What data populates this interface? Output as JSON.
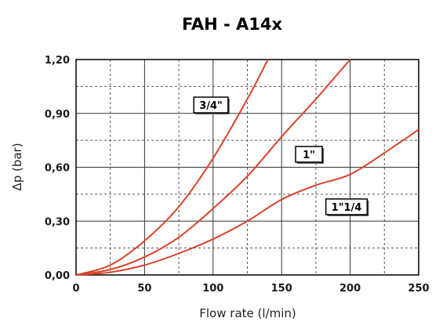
{
  "chart_data": {
    "type": "line",
    "title": "FAH - A14x",
    "xlabel": "Flow rate (l/min)",
    "ylabel": "Δp (bar)",
    "xlim": [
      0,
      250
    ],
    "ylim": [
      0,
      1.2
    ],
    "x_ticks": [
      0,
      50,
      100,
      150,
      200,
      250
    ],
    "x_tick_labels": [
      "0",
      "50",
      "100",
      "150",
      "200",
      "250"
    ],
    "y_ticks": [
      0,
      0.3,
      0.6,
      0.9,
      1.2
    ],
    "y_tick_labels": [
      "0,00",
      "0,30",
      "0,60",
      "0,90",
      "1,20"
    ],
    "grid": true,
    "line_color": "#d9432a",
    "series": [
      {
        "name": "3/4\"",
        "points": [
          [
            0,
            0
          ],
          [
            25,
            0.055
          ],
          [
            50,
            0.19
          ],
          [
            75,
            0.38
          ],
          [
            100,
            0.65
          ],
          [
            125,
            0.98
          ],
          [
            140,
            1.2
          ]
        ]
      },
      {
        "name": "1\"",
        "points": [
          [
            0,
            0
          ],
          [
            25,
            0.03
          ],
          [
            50,
            0.1
          ],
          [
            75,
            0.21
          ],
          [
            100,
            0.37
          ],
          [
            125,
            0.55
          ],
          [
            150,
            0.77
          ],
          [
            175,
            0.98
          ],
          [
            200,
            1.2
          ]
        ]
      },
      {
        "name": "1\"1/4",
        "points": [
          [
            0,
            0
          ],
          [
            25,
            0.015
          ],
          [
            50,
            0.055
          ],
          [
            75,
            0.12
          ],
          [
            100,
            0.2
          ],
          [
            125,
            0.3
          ],
          [
            150,
            0.42
          ],
          [
            175,
            0.5
          ],
          [
            200,
            0.56
          ],
          [
            225,
            0.68
          ],
          [
            250,
            0.81
          ]
        ]
      }
    ]
  }
}
